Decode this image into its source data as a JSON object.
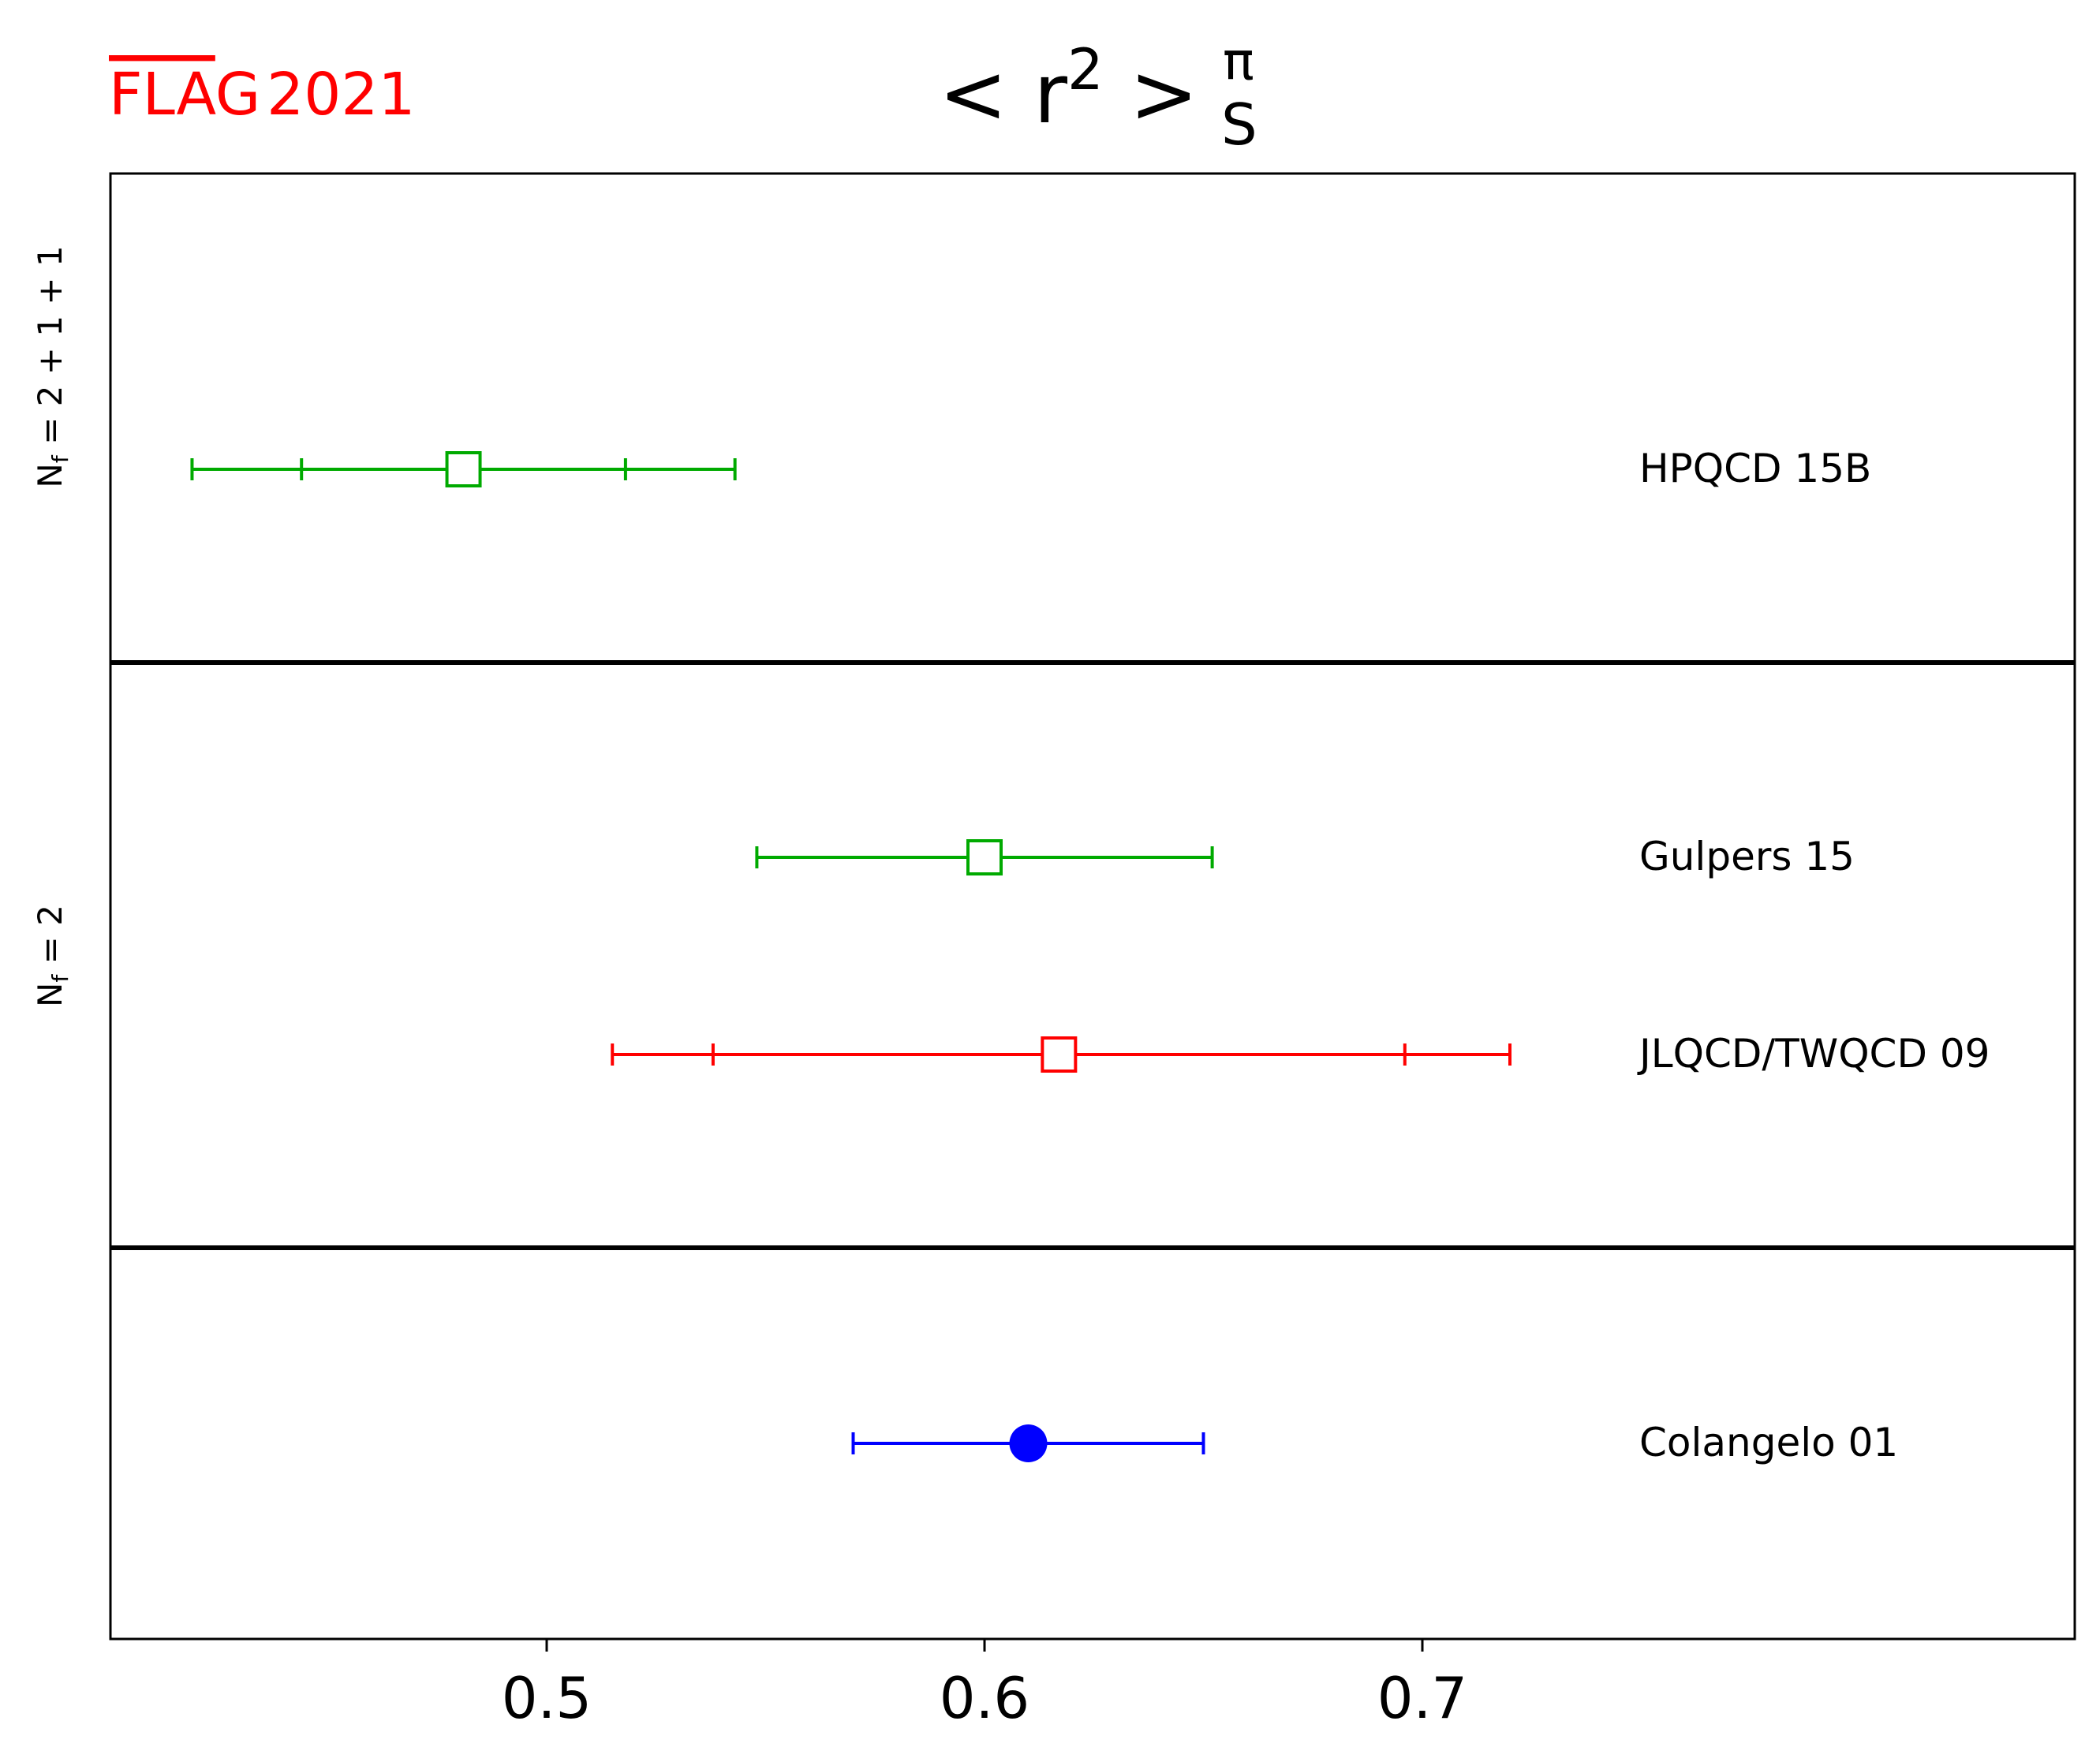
{
  "chart_data": {
    "type": "scatter",
    "title_main": "< r",
    "title_sup": "2",
    "title_close": " >",
    "title_sub_top": "π",
    "title_sub_bottom": "S",
    "logo": {
      "text_overline": "FLA",
      "text_rest": "G",
      "year": "2021",
      "color": "#ff0000"
    },
    "xlabel": "",
    "ylabel": "",
    "xlim": [
      0.4,
      0.85
    ],
    "xticks": [
      0.5,
      0.6,
      0.7
    ],
    "xtick_labels": [
      "0.5",
      "0.6",
      "0.7"
    ],
    "grid": false,
    "groups": [
      {
        "label_main": "N",
        "label_sub": "f",
        "label_rest": " = 2 + 1 + 1"
      },
      {
        "label_main": "N",
        "label_sub": "f",
        "label_rest": " = 2"
      },
      {
        "label_main": "",
        "label_sub": "",
        "label_rest": ""
      }
    ],
    "points": [
      {
        "name": "HPQCD 15B",
        "group": 0,
        "value": 0.481,
        "stat_err": [
          0.444,
          0.518
        ],
        "total_err": [
          0.419,
          0.543
        ],
        "marker": "square-open",
        "color": "#00aa00"
      },
      {
        "name": "Gulpers 15",
        "group": 1,
        "value": 0.6,
        "stat_err": null,
        "total_err": [
          0.548,
          0.652
        ],
        "marker": "square-open",
        "color": "#00aa00"
      },
      {
        "name": "JLQCD/TWQCD 09",
        "group": 1,
        "value": 0.617,
        "stat_err": [
          0.538,
          0.696
        ],
        "total_err": [
          0.515,
          0.72
        ],
        "marker": "square-open",
        "color": "#ff0000"
      },
      {
        "name": "Colangelo 01",
        "group": 2,
        "value": 0.61,
        "stat_err": null,
        "total_err": [
          0.57,
          0.65
        ],
        "marker": "circle-filled",
        "color": "#0000ff"
      }
    ]
  }
}
